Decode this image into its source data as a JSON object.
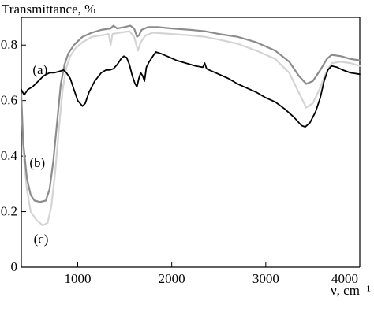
{
  "chart_data": {
    "type": "line",
    "ylabel": "Transmittance, %",
    "xlabel": "ν, cm⁻¹",
    "xlim": [
      400,
      4000
    ],
    "ylim": [
      0,
      0.9
    ],
    "x_ticks": [
      1000,
      2000,
      3000,
      4000
    ],
    "y_ticks": [
      0,
      0.2,
      0.4,
      0.6,
      0.8
    ],
    "x_tick_labels": [
      "1000",
      "2000",
      "3000",
      "4000"
    ],
    "y_tick_labels": [
      "0",
      "0.2",
      "0.4",
      "0.6",
      "0.8"
    ],
    "grid": false,
    "legend": "none",
    "annotations": [
      {
        "text": "(a)",
        "series": 0,
        "x": 600,
        "y": 0.71
      },
      {
        "text": "(b)",
        "series": 1,
        "x": 570,
        "y": 0.375
      },
      {
        "text": "(c)",
        "series": 2,
        "x": 610,
        "y": 0.1
      }
    ],
    "series": [
      {
        "color": "#000000",
        "points": [
          [
            400,
            0.64
          ],
          [
            430,
            0.62
          ],
          [
            470,
            0.64
          ],
          [
            520,
            0.65
          ],
          [
            580,
            0.67
          ],
          [
            640,
            0.69
          ],
          [
            700,
            0.7
          ],
          [
            750,
            0.7
          ],
          [
            800,
            0.705
          ],
          [
            850,
            0.71
          ],
          [
            880,
            0.7
          ],
          [
            920,
            0.68
          ],
          [
            960,
            0.64
          ],
          [
            1000,
            0.6
          ],
          [
            1050,
            0.58
          ],
          [
            1080,
            0.59
          ],
          [
            1120,
            0.63
          ],
          [
            1180,
            0.67
          ],
          [
            1250,
            0.7
          ],
          [
            1300,
            0.71
          ],
          [
            1340,
            0.71
          ],
          [
            1380,
            0.715
          ],
          [
            1420,
            0.73
          ],
          [
            1460,
            0.75
          ],
          [
            1490,
            0.76
          ],
          [
            1520,
            0.755
          ],
          [
            1550,
            0.73
          ],
          [
            1580,
            0.69
          ],
          [
            1610,
            0.66
          ],
          [
            1630,
            0.65
          ],
          [
            1650,
            0.68
          ],
          [
            1670,
            0.7
          ],
          [
            1690,
            0.69
          ],
          [
            1710,
            0.67
          ],
          [
            1730,
            0.72
          ],
          [
            1760,
            0.74
          ],
          [
            1800,
            0.76
          ],
          [
            1830,
            0.775
          ],
          [
            1880,
            0.77
          ],
          [
            1950,
            0.76
          ],
          [
            2050,
            0.745
          ],
          [
            2150,
            0.735
          ],
          [
            2250,
            0.725
          ],
          [
            2330,
            0.72
          ],
          [
            2350,
            0.735
          ],
          [
            2370,
            0.715
          ],
          [
            2400,
            0.71
          ],
          [
            2500,
            0.695
          ],
          [
            2600,
            0.68
          ],
          [
            2700,
            0.66
          ],
          [
            2800,
            0.645
          ],
          [
            2900,
            0.63
          ],
          [
            3000,
            0.61
          ],
          [
            3100,
            0.595
          ],
          [
            3200,
            0.57
          ],
          [
            3300,
            0.54
          ],
          [
            3380,
            0.51
          ],
          [
            3420,
            0.505
          ],
          [
            3470,
            0.52
          ],
          [
            3530,
            0.56
          ],
          [
            3580,
            0.61
          ],
          [
            3620,
            0.67
          ],
          [
            3660,
            0.71
          ],
          [
            3700,
            0.725
          ],
          [
            3760,
            0.72
          ],
          [
            3820,
            0.71
          ],
          [
            3900,
            0.7
          ],
          [
            4000,
            0.695
          ]
        ]
      },
      {
        "color": "#8c8c8c",
        "points": [
          [
            400,
            0.62
          ],
          [
            420,
            0.45
          ],
          [
            460,
            0.32
          ],
          [
            500,
            0.26
          ],
          [
            540,
            0.24
          ],
          [
            600,
            0.235
          ],
          [
            660,
            0.24
          ],
          [
            700,
            0.28
          ],
          [
            740,
            0.38
          ],
          [
            780,
            0.52
          ],
          [
            820,
            0.66
          ],
          [
            860,
            0.73
          ],
          [
            900,
            0.77
          ],
          [
            960,
            0.8
          ],
          [
            1050,
            0.83
          ],
          [
            1150,
            0.845
          ],
          [
            1250,
            0.855
          ],
          [
            1350,
            0.86
          ],
          [
            1380,
            0.87
          ],
          [
            1420,
            0.86
          ],
          [
            1500,
            0.865
          ],
          [
            1560,
            0.87
          ],
          [
            1600,
            0.86
          ],
          [
            1630,
            0.83
          ],
          [
            1650,
            0.835
          ],
          [
            1680,
            0.855
          ],
          [
            1750,
            0.865
          ],
          [
            1850,
            0.865
          ],
          [
            2000,
            0.86
          ],
          [
            2200,
            0.855
          ],
          [
            2350,
            0.85
          ],
          [
            2500,
            0.84
          ],
          [
            2700,
            0.83
          ],
          [
            2900,
            0.81
          ],
          [
            3100,
            0.78
          ],
          [
            3250,
            0.74
          ],
          [
            3350,
            0.69
          ],
          [
            3430,
            0.66
          ],
          [
            3500,
            0.67
          ],
          [
            3580,
            0.71
          ],
          [
            3650,
            0.75
          ],
          [
            3700,
            0.765
          ],
          [
            3800,
            0.76
          ],
          [
            3900,
            0.75
          ],
          [
            4000,
            0.745
          ]
        ]
      },
      {
        "color": "#d4d4d4",
        "points": [
          [
            400,
            0.6
          ],
          [
            420,
            0.42
          ],
          [
            460,
            0.28
          ],
          [
            500,
            0.2
          ],
          [
            560,
            0.17
          ],
          [
            630,
            0.15
          ],
          [
            680,
            0.16
          ],
          [
            720,
            0.22
          ],
          [
            760,
            0.34
          ],
          [
            800,
            0.5
          ],
          [
            840,
            0.64
          ],
          [
            880,
            0.72
          ],
          [
            920,
            0.76
          ],
          [
            980,
            0.79
          ],
          [
            1050,
            0.81
          ],
          [
            1150,
            0.83
          ],
          [
            1250,
            0.835
          ],
          [
            1330,
            0.84
          ],
          [
            1350,
            0.8
          ],
          [
            1370,
            0.84
          ],
          [
            1450,
            0.845
          ],
          [
            1550,
            0.85
          ],
          [
            1600,
            0.83
          ],
          [
            1640,
            0.78
          ],
          [
            1670,
            0.81
          ],
          [
            1720,
            0.835
          ],
          [
            1800,
            0.845
          ],
          [
            2000,
            0.84
          ],
          [
            2200,
            0.835
          ],
          [
            2350,
            0.83
          ],
          [
            2500,
            0.82
          ],
          [
            2700,
            0.805
          ],
          [
            2900,
            0.78
          ],
          [
            3100,
            0.75
          ],
          [
            3250,
            0.7
          ],
          [
            3350,
            0.63
          ],
          [
            3430,
            0.575
          ],
          [
            3500,
            0.59
          ],
          [
            3570,
            0.64
          ],
          [
            3640,
            0.7
          ],
          [
            3700,
            0.735
          ],
          [
            3800,
            0.74
          ],
          [
            3900,
            0.735
          ],
          [
            4000,
            0.725
          ]
        ]
      }
    ]
  }
}
